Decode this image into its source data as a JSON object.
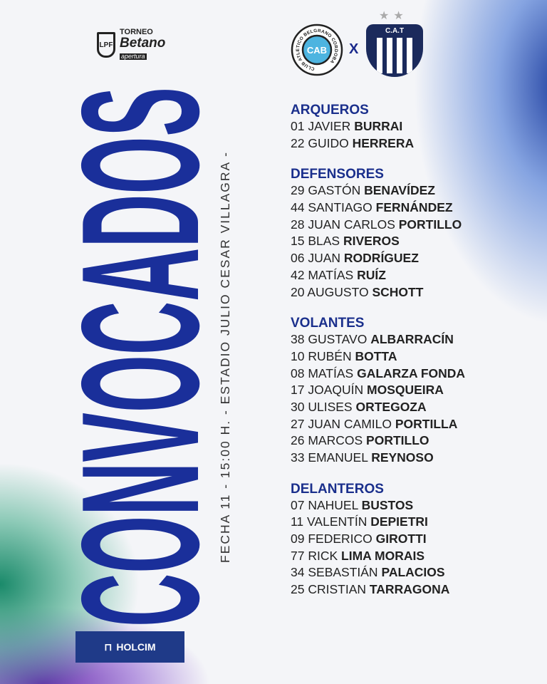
{
  "league": {
    "logo": "LPF",
    "line1": "TORNEO",
    "line2": "Betano",
    "line3": "apertura"
  },
  "match": {
    "home_crest": "CAB",
    "home_name": "CLUB ATLETICO BELGRANO CORDOBA",
    "vs": "X",
    "away_crest": "C.A.T"
  },
  "title": "CONVOCADOS",
  "info": "FECHA 11 - 15:00 H. - ESTADIO JULIO CESAR VILLAGRA -",
  "colors": {
    "accent": "#1a2f8c"
  },
  "sections": [
    {
      "title": "ARQUEROS",
      "players": [
        [
          "01",
          "JAVIER",
          "BURRAI"
        ],
        [
          "22",
          "GUIDO",
          "HERRERA"
        ]
      ]
    },
    {
      "title": "DEFENSORES",
      "players": [
        [
          "29",
          "GASTÓN",
          "BENAVÍDEZ"
        ],
        [
          "44",
          "SANTIAGO",
          "FERNÁNDEZ"
        ],
        [
          "28",
          "JUAN CARLOS",
          "PORTILLO"
        ],
        [
          "15",
          "BLAS",
          "RIVEROS"
        ],
        [
          "06",
          "JUAN",
          "RODRÍGUEZ"
        ],
        [
          "42",
          "MATÍAS",
          "RUÍZ"
        ],
        [
          "20",
          "AUGUSTO",
          "SCHOTT"
        ]
      ]
    },
    {
      "title": "VOLANTES",
      "players": [
        [
          "38",
          "GUSTAVO",
          "ALBARRACÍN"
        ],
        [
          "10",
          "RUBÉN",
          "BOTTA"
        ],
        [
          "08",
          "MATÍAS",
          "GALARZA FONDA"
        ],
        [
          "17",
          "JOAQUÍN",
          "MOSQUEIRA"
        ],
        [
          "30",
          "ULISES",
          "ORTEGOZA"
        ],
        [
          "27",
          "JUAN CAMILO",
          "PORTILLA"
        ],
        [
          "26",
          "MARCOS",
          "PORTILLO"
        ],
        [
          "33",
          "EMANUEL",
          "REYNOSO"
        ]
      ]
    },
    {
      "title": "DELANTEROS",
      "players": [
        [
          "07",
          "NAHUEL",
          "BUSTOS"
        ],
        [
          "11",
          "VALENTÍN",
          "DEPIETRI"
        ],
        [
          "09",
          "FEDERICO",
          "GIROTTI"
        ],
        [
          "77",
          "RICK",
          "LIMA MORAIS"
        ],
        [
          "34",
          "SEBASTIÁN",
          "PALACIOS"
        ],
        [
          "25",
          "CRISTIAN",
          "TARRAGONA"
        ]
      ]
    }
  ],
  "sponsor": "HOLCIM"
}
